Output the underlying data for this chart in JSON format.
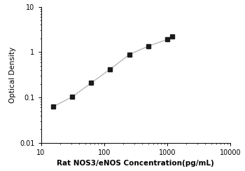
{
  "x_data": [
    15.625,
    31.25,
    62.5,
    125,
    250,
    500,
    1000,
    1200
  ],
  "y_data": [
    0.063,
    0.103,
    0.21,
    0.42,
    0.88,
    1.35,
    1.9,
    2.2
  ],
  "x_label": "Rat NOS3/eNOS Concentration(pg/mL)",
  "y_label": "Optical Density",
  "xlim": [
    10,
    10000
  ],
  "ylim": [
    0.01,
    10
  ],
  "x_ticks": [
    10,
    100,
    1000,
    10000
  ],
  "x_tick_labels": [
    "10",
    "100",
    "1000",
    "10000"
  ],
  "y_ticks": [
    0.01,
    0.1,
    1,
    10
  ],
  "y_tick_labels": [
    "0.01",
    "0.1",
    "1",
    "10"
  ],
  "line_color": "#b0b0b0",
  "marker_color": "#1a1a1a",
  "marker_style": "s",
  "marker_size": 4,
  "line_width": 0.9,
  "bg_color": "#ffffff",
  "xlabel_fontsize": 7.5,
  "ylabel_fontsize": 7.5,
  "tick_fontsize": 7.0
}
